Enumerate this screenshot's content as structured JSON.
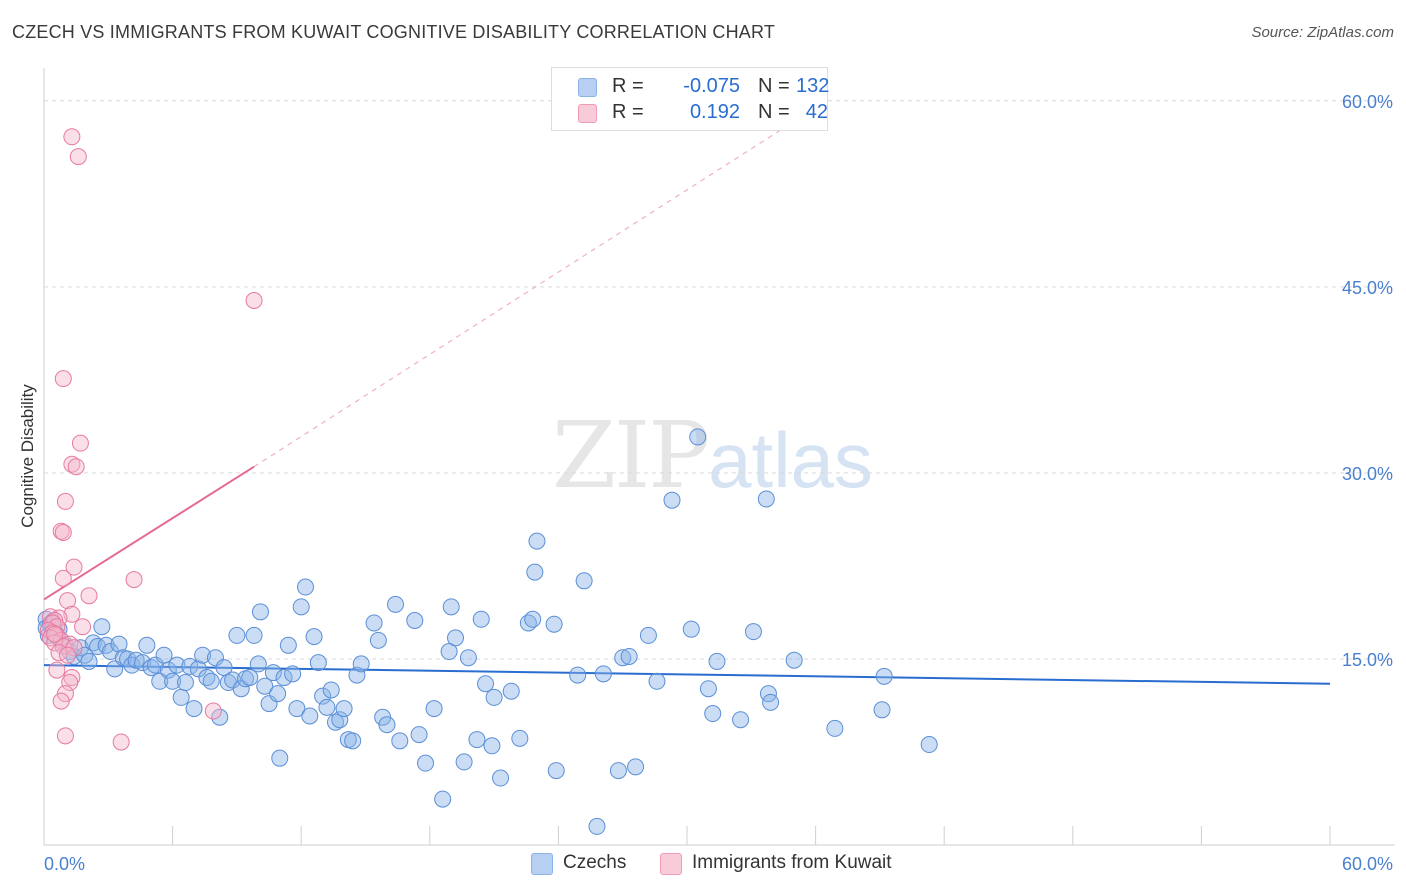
{
  "title": "CZECH VS IMMIGRANTS FROM KUWAIT COGNITIVE DISABILITY CORRELATION CHART",
  "source": "Source: ZipAtlas.com",
  "watermark": {
    "zip": "ZIP",
    "atlas": "atlas"
  },
  "legend": {
    "r_label": "R =",
    "n_label": "N =",
    "series": [
      {
        "name": "Czechs",
        "r": "-0.075",
        "n": "132",
        "color": "#8ab4e8"
      },
      {
        "name": "Immigrants from Kuwait",
        "r": "0.192",
        "n": "42",
        "color": "#f29bb6"
      }
    ]
  },
  "chart_data": {
    "type": "scatter",
    "title": "CZECH VS IMMIGRANTS FROM KUWAIT COGNITIVE DISABILITY CORRELATION CHART",
    "xlabel": "",
    "ylabel": "Cognitive Disability",
    "xlim": [
      0,
      60
    ],
    "ylim": [
      0,
      62
    ],
    "x_tick_labels": [
      "0.0%",
      "60.0%"
    ],
    "y_tick_labels": [
      "15.0%",
      "30.0%",
      "45.0%",
      "60.0%"
    ],
    "y_ticks": [
      15,
      30,
      45,
      60
    ],
    "grid": true,
    "series": [
      {
        "name": "Czechs",
        "color": "#8ab4e8",
        "edge_color": "#5b8fd6",
        "trend": {
          "x": [
            0,
            60
          ],
          "y": [
            14.5,
            13.0
          ],
          "color": "#2a6dd0"
        },
        "points": [
          [
            0.1,
            18.2
          ],
          [
            0.1,
            17.5
          ],
          [
            0.2,
            16.9
          ],
          [
            0.3,
            17.8
          ],
          [
            0.4,
            18.0
          ],
          [
            0.5,
            17.2
          ],
          [
            0.6,
            16.8
          ],
          [
            0.7,
            17.4
          ],
          [
            0.8,
            16.5
          ],
          [
            1.0,
            16.1
          ],
          [
            1.2,
            15.6
          ],
          [
            1.4,
            15.2
          ],
          [
            1.7,
            15.9
          ],
          [
            1.9,
            15.3
          ],
          [
            2.1,
            14.8
          ],
          [
            2.3,
            16.3
          ],
          [
            2.5,
            16.0
          ],
          [
            2.7,
            17.6
          ],
          [
            2.9,
            16.1
          ],
          [
            3.1,
            15.6
          ],
          [
            3.3,
            14.2
          ],
          [
            3.5,
            16.2
          ],
          [
            3.7,
            15.1
          ],
          [
            3.9,
            15.0
          ],
          [
            4.1,
            14.5
          ],
          [
            4.3,
            14.9
          ],
          [
            4.6,
            14.7
          ],
          [
            4.8,
            16.1
          ],
          [
            5.0,
            14.3
          ],
          [
            5.2,
            14.5
          ],
          [
            5.4,
            13.2
          ],
          [
            5.6,
            15.3
          ],
          [
            5.8,
            14.1
          ],
          [
            6.0,
            13.2
          ],
          [
            6.2,
            14.5
          ],
          [
            6.4,
            11.9
          ],
          [
            6.6,
            13.1
          ],
          [
            6.8,
            14.4
          ],
          [
            7.0,
            11.0
          ],
          [
            7.2,
            14.2
          ],
          [
            7.4,
            15.3
          ],
          [
            7.6,
            13.5
          ],
          [
            7.8,
            13.2
          ],
          [
            8.0,
            15.1
          ],
          [
            8.2,
            10.3
          ],
          [
            8.4,
            14.3
          ],
          [
            8.6,
            13.1
          ],
          [
            8.8,
            13.3
          ],
          [
            9.0,
            16.9
          ],
          [
            9.2,
            12.6
          ],
          [
            9.4,
            13.4
          ],
          [
            9.6,
            13.5
          ],
          [
            9.8,
            16.9
          ],
          [
            10.0,
            14.6
          ],
          [
            10.1,
            18.8
          ],
          [
            10.3,
            12.8
          ],
          [
            10.5,
            11.4
          ],
          [
            10.7,
            13.9
          ],
          [
            10.9,
            12.2
          ],
          [
            11.0,
            7.0
          ],
          [
            11.2,
            13.5
          ],
          [
            11.4,
            16.1
          ],
          [
            11.6,
            13.8
          ],
          [
            11.8,
            11.0
          ],
          [
            12.0,
            19.2
          ],
          [
            12.2,
            20.8
          ],
          [
            12.4,
            10.4
          ],
          [
            12.6,
            16.8
          ],
          [
            12.8,
            14.7
          ],
          [
            13.0,
            12.0
          ],
          [
            13.2,
            11.1
          ],
          [
            13.4,
            12.5
          ],
          [
            13.6,
            9.9
          ],
          [
            13.8,
            10.1
          ],
          [
            14.0,
            11.0
          ],
          [
            14.2,
            8.5
          ],
          [
            14.4,
            8.4
          ],
          [
            14.6,
            13.7
          ],
          [
            14.8,
            14.6
          ],
          [
            15.4,
            17.9
          ],
          [
            15.6,
            16.5
          ],
          [
            15.8,
            10.3
          ],
          [
            16.0,
            9.7
          ],
          [
            16.4,
            19.4
          ],
          [
            16.6,
            8.4
          ],
          [
            17.3,
            18.1
          ],
          [
            17.5,
            8.9
          ],
          [
            17.8,
            6.6
          ],
          [
            18.2,
            11.0
          ],
          [
            18.6,
            3.7
          ],
          [
            19.0,
            19.2
          ],
          [
            18.9,
            15.6
          ],
          [
            19.2,
            16.7
          ],
          [
            19.6,
            6.7
          ],
          [
            19.8,
            15.1
          ],
          [
            20.2,
            8.5
          ],
          [
            20.4,
            18.2
          ],
          [
            20.6,
            13.0
          ],
          [
            20.9,
            8.0
          ],
          [
            21.0,
            11.9
          ],
          [
            21.3,
            5.4
          ],
          [
            21.8,
            12.4
          ],
          [
            22.2,
            8.6
          ],
          [
            22.6,
            17.9
          ],
          [
            22.8,
            18.2
          ],
          [
            22.9,
            22.0
          ],
          [
            23.0,
            24.5
          ],
          [
            23.8,
            17.8
          ],
          [
            23.9,
            6.0
          ],
          [
            24.9,
            13.7
          ],
          [
            25.2,
            21.3
          ],
          [
            25.8,
            1.5
          ],
          [
            26.1,
            13.8
          ],
          [
            26.8,
            6.0
          ],
          [
            27.0,
            15.1
          ],
          [
            27.3,
            15.2
          ],
          [
            27.6,
            6.3
          ],
          [
            28.2,
            16.9
          ],
          [
            28.6,
            13.2
          ],
          [
            29.3,
            27.8
          ],
          [
            30.2,
            17.4
          ],
          [
            30.5,
            32.9
          ],
          [
            31.0,
            12.6
          ],
          [
            31.2,
            10.6
          ],
          [
            31.4,
            14.8
          ],
          [
            32.5,
            10.1
          ],
          [
            33.1,
            17.2
          ],
          [
            33.7,
            27.9
          ],
          [
            33.8,
            12.2
          ],
          [
            33.9,
            11.5
          ],
          [
            35.0,
            14.9
          ],
          [
            36.9,
            9.4
          ],
          [
            39.1,
            10.9
          ],
          [
            39.2,
            13.6
          ],
          [
            41.3,
            8.1
          ]
        ]
      },
      {
        "name": "Immigrants from Kuwait",
        "color": "#f5b8cb",
        "edge_color": "#e77aa0",
        "trend": {
          "x": [
            0,
            9.8
          ],
          "y": [
            19.8,
            30.5
          ],
          "color": "#e56a93",
          "extrapolated_to": [
            36.5,
            60
          ]
        },
        "points": [
          [
            1.3,
            57.1
          ],
          [
            1.6,
            55.5
          ],
          [
            9.8,
            43.9
          ],
          [
            0.9,
            37.6
          ],
          [
            1.7,
            32.4
          ],
          [
            1.3,
            30.7
          ],
          [
            1.5,
            30.5
          ],
          [
            1.0,
            27.7
          ],
          [
            0.8,
            25.3
          ],
          [
            0.9,
            25.2
          ],
          [
            1.4,
            22.4
          ],
          [
            0.9,
            21.5
          ],
          [
            4.2,
            21.4
          ],
          [
            2.1,
            20.1
          ],
          [
            1.1,
            19.7
          ],
          [
            1.3,
            18.6
          ],
          [
            0.3,
            18.4
          ],
          [
            0.7,
            18.3
          ],
          [
            0.5,
            18.1
          ],
          [
            0.4,
            17.9
          ],
          [
            0.6,
            17.6
          ],
          [
            1.8,
            17.6
          ],
          [
            0.2,
            17.3
          ],
          [
            0.4,
            17.1
          ],
          [
            0.6,
            16.9
          ],
          [
            0.3,
            16.7
          ],
          [
            0.8,
            16.5
          ],
          [
            0.5,
            16.3
          ],
          [
            1.2,
            16.2
          ],
          [
            0.9,
            16.0
          ],
          [
            1.4,
            15.9
          ],
          [
            0.7,
            15.5
          ],
          [
            1.1,
            15.3
          ],
          [
            0.6,
            14.1
          ],
          [
            1.3,
            13.5
          ],
          [
            1.2,
            13.1
          ],
          [
            1.0,
            12.2
          ],
          [
            0.8,
            11.6
          ],
          [
            7.9,
            10.8
          ],
          [
            1.0,
            8.8
          ],
          [
            3.6,
            8.3
          ],
          [
            0.5,
            17.0
          ]
        ]
      }
    ]
  }
}
